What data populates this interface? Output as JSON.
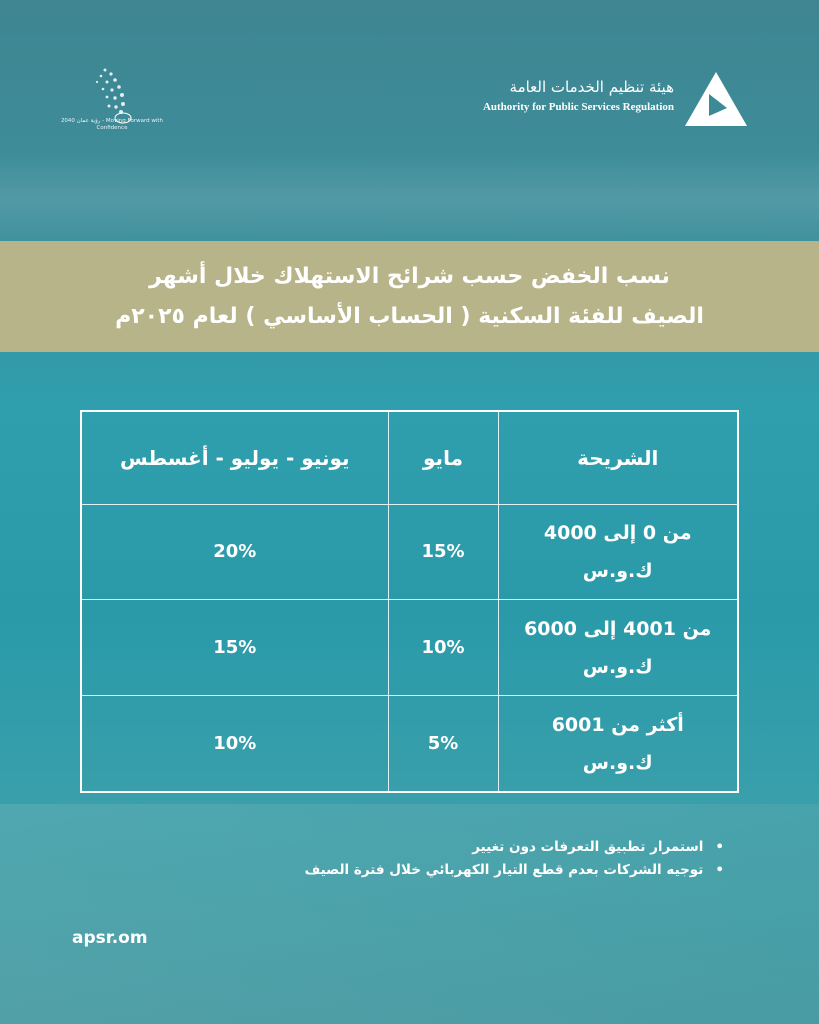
{
  "header": {
    "authority_ar": "هيئة تنظيم الخدمات العامة",
    "authority_en": "Authority for Public Services Regulation",
    "vision_logo_text": "رؤية عمان 2040 - Moving Forward with Confidence"
  },
  "title": {
    "line1": "نسب الخفض حسب شرائح الاستهلاك خلال أشهر",
    "line2": "الصيف للفئة السكنية ( الحساب الأساسي ) لعام ٢٠٢٥م"
  },
  "table": {
    "headers": [
      "الشريحة",
      "مايو",
      "يونيو - يوليو - أغسطس"
    ],
    "rows": [
      {
        "band": "من 0 إلى 4000",
        "unit": "ك.و.س",
        "may": "15%",
        "summer": "20%"
      },
      {
        "band": "من 4001 إلى 6000",
        "unit": "ك.و.س",
        "may": "10%",
        "summer": "15%"
      },
      {
        "band": "أكثر من 6001",
        "unit": "ك.و.س",
        "may": "5%",
        "summer": "10%"
      }
    ]
  },
  "notes": [
    "استمرار تطبيق التعرفات دون تغيير",
    "توجيه الشركات بعدم قطع التيار الكهربائي خلال فترة الصيف"
  ],
  "footer": {
    "website": "apsr.om"
  },
  "colors": {
    "banner": "#b8b489",
    "background": "#2f9fae"
  }
}
